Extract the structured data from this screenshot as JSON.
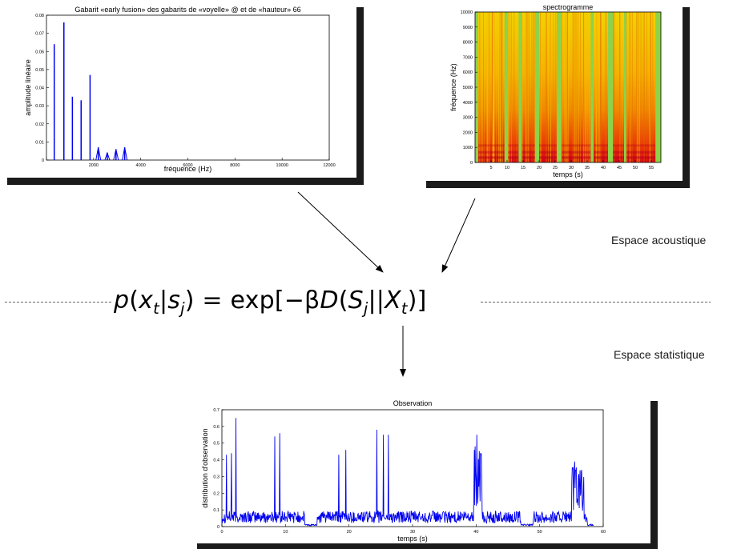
{
  "labels": {
    "acoustic_space": "Espace acoustique",
    "statistical_space": "Espace statistique"
  },
  "formula": {
    "lhs_p": "p",
    "x": "x",
    "x_sub": "t",
    "s": "s",
    "s_sub": "j",
    "equals_exp": "= exp",
    "minus_beta": "−β",
    "D": "D",
    "S": "S",
    "S_sub": "j",
    "X": "X",
    "X_sub": "t"
  },
  "chart_data": [
    {
      "type": "bar",
      "title": "Gabarit «early fusion» des gabarits de «voyelle» @ et de «hauteur» 66",
      "xlabel": "fréquence (Hz)",
      "ylabel": "amplitude linéaire",
      "xlim": [
        0,
        12000
      ],
      "ylim": [
        0,
        0.08
      ],
      "xticks": [
        0,
        2000,
        4000,
        6000,
        8000,
        10000,
        12000
      ],
      "yticks": [
        0,
        0.01,
        0.02,
        0.03,
        0.04,
        0.05,
        0.06,
        0.07,
        0.08
      ],
      "ytick_labels": [
        "0",
        "0.01",
        "0.02",
        "0.03",
        "0.04",
        "0.05",
        "0.06",
        "0.07",
        "0.08"
      ],
      "x": [
        330,
        740,
        1100,
        1470,
        1850,
        2200,
        2580,
        2950,
        3320
      ],
      "values": [
        0.064,
        0.076,
        0.035,
        0.033,
        0.047,
        0.007,
        0.004,
        0.006,
        0.007
      ],
      "color": "#0000ee"
    },
    {
      "type": "heatmap",
      "title": "spectrogramme",
      "xlabel": "temps (s)",
      "ylabel": "fréquence (Hz)",
      "xlim": [
        0,
        58
      ],
      "ylim": [
        0,
        10000
      ],
      "xticks": [
        5,
        10,
        15,
        20,
        25,
        30,
        35,
        40,
        45,
        50,
        55
      ],
      "yticks": [
        0,
        1000,
        2000,
        3000,
        4000,
        5000,
        6000,
        7000,
        8000,
        9000,
        10000
      ],
      "gap_intervals_s": [
        [
          0,
          1
        ],
        [
          9.2,
          10.3
        ],
        [
          13.6,
          14.6
        ],
        [
          18.7,
          20
        ],
        [
          25.5,
          27
        ],
        [
          36.1,
          37
        ],
        [
          41.5,
          43
        ],
        [
          46.5,
          47.2
        ],
        [
          56.3,
          58
        ]
      ],
      "colors": {
        "low": "#8ed24a",
        "mid": "#f5d100",
        "high": "#f08a00",
        "peak": "#c8001f"
      }
    },
    {
      "type": "line",
      "title": "Observation",
      "xlabel": "temps (s)",
      "ylabel": "distribution d'observation",
      "xlim": [
        0,
        60
      ],
      "ylim": [
        0,
        0.7
      ],
      "xticks": [
        0,
        10,
        20,
        30,
        40,
        50,
        60
      ],
      "yticks": [
        0,
        0.1,
        0.2,
        0.3,
        0.4,
        0.5,
        0.6,
        0.7
      ],
      "peaks": [
        [
          0.7,
          0.43
        ],
        [
          1.5,
          0.44
        ],
        [
          2.2,
          0.65
        ],
        [
          8.3,
          0.54
        ],
        [
          9.1,
          0.56
        ],
        [
          18.4,
          0.43
        ],
        [
          19.5,
          0.46
        ],
        [
          24.4,
          0.58
        ],
        [
          25.4,
          0.55
        ],
        [
          26.2,
          0.55
        ],
        [
          40.1,
          0.55
        ],
        [
          55.5,
          0.39
        ],
        [
          56.6,
          0.34
        ]
      ],
      "baseline_level": 0.06,
      "color": "#0000ee"
    }
  ]
}
